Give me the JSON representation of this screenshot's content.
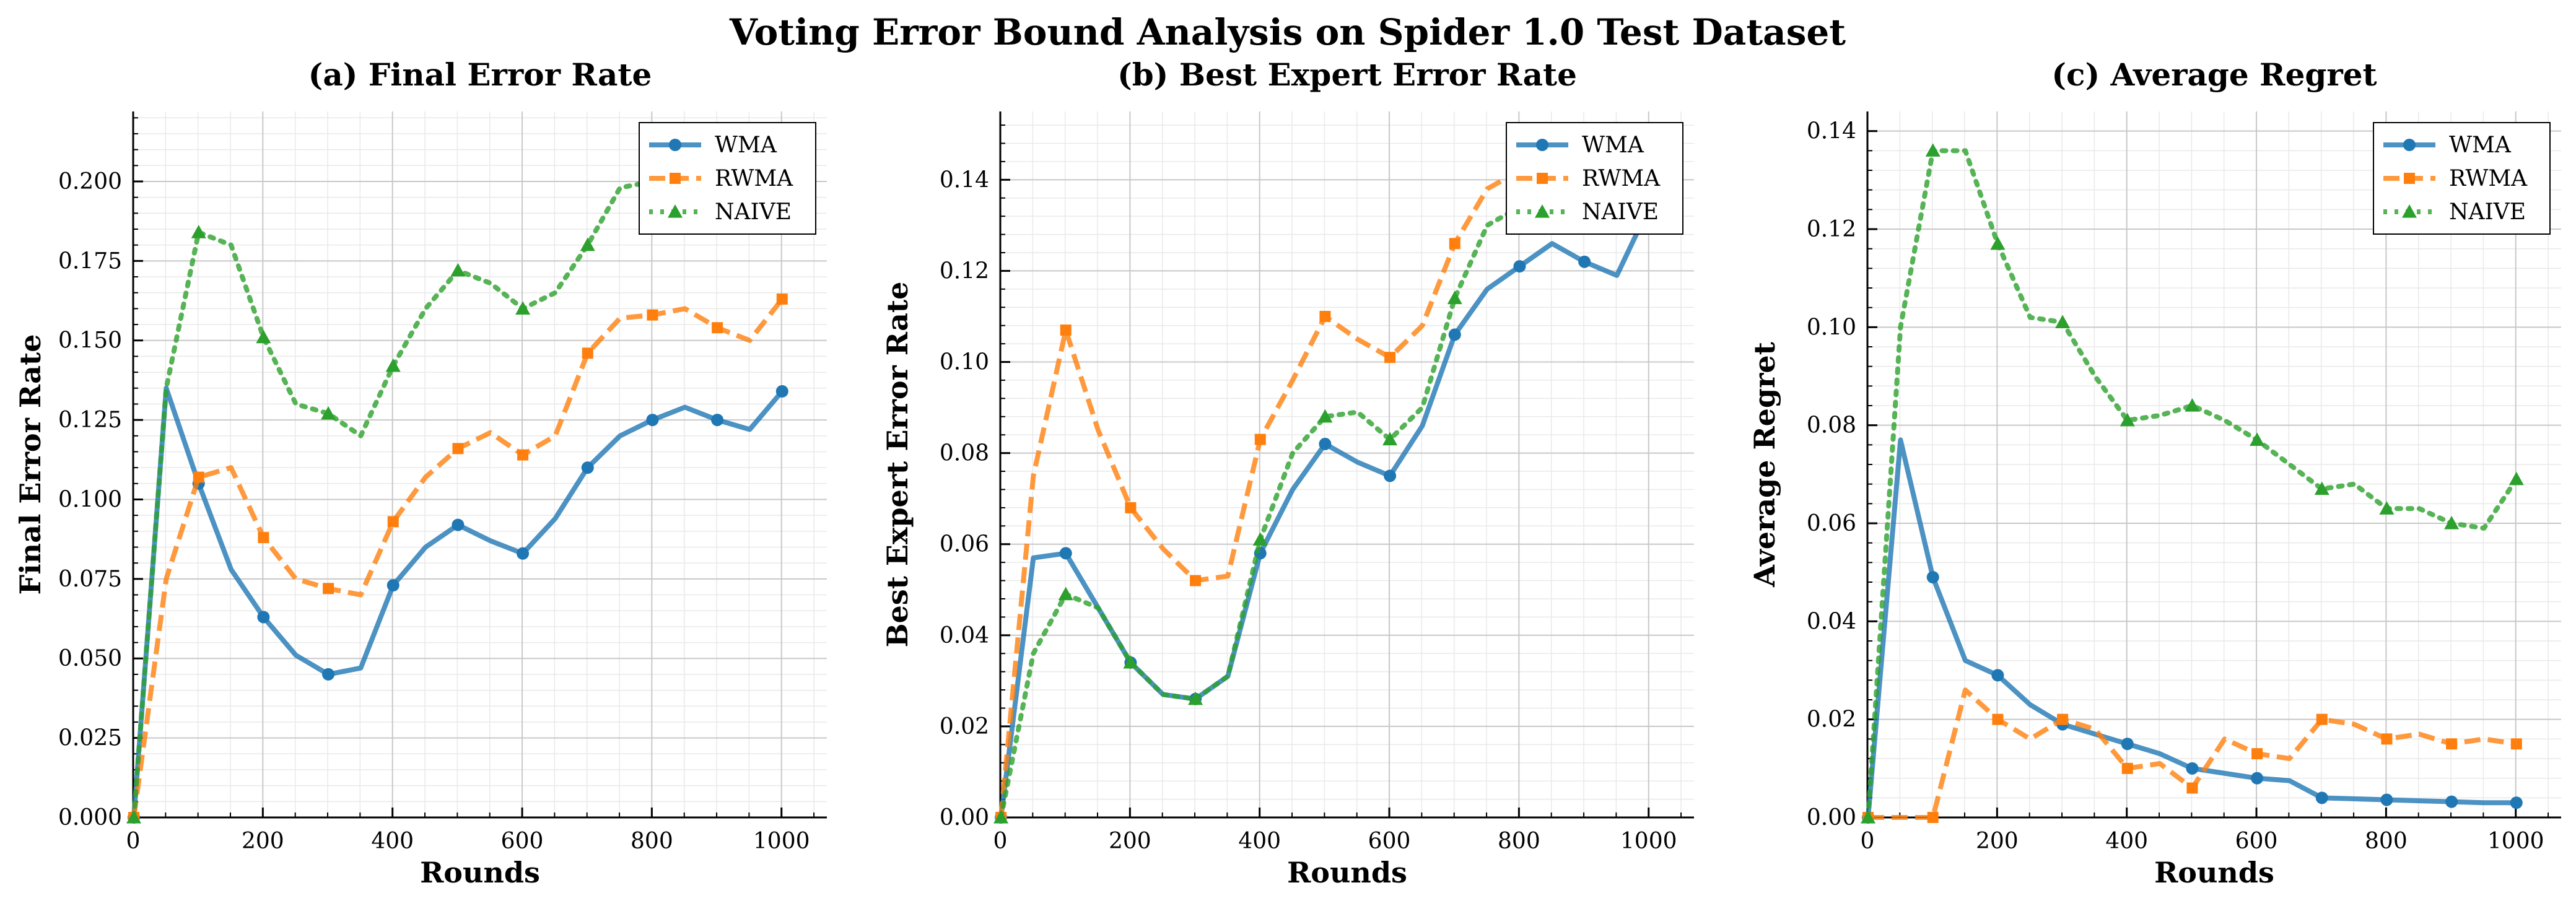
{
  "figure": {
    "title": "Voting Error Bound Analysis on Spider 1.0 Test Dataset"
  },
  "chart_data": [
    {
      "type": "line",
      "title": "(a) Final Error Rate",
      "xlabel": "Rounds",
      "ylabel": "Final Error Rate",
      "xlim": [
        0,
        1070
      ],
      "ylim": [
        0,
        0.222
      ],
      "xticks": [
        0,
        200,
        400,
        600,
        800,
        1000
      ],
      "yticks": [
        0.0,
        0.025,
        0.05,
        0.075,
        0.1,
        0.125,
        0.15,
        0.175,
        0.2
      ],
      "ytick_labels": [
        "0.000",
        "0.025",
        "0.050",
        "0.075",
        "0.100",
        "0.125",
        "0.150",
        "0.175",
        "0.200"
      ],
      "grid": true,
      "legend": "top-right",
      "x": [
        1,
        51,
        101,
        151,
        201,
        251,
        301,
        351,
        401,
        451,
        501,
        551,
        601,
        651,
        701,
        751,
        801,
        851,
        901,
        951,
        1001
      ],
      "series": [
        {
          "name": "WMA",
          "color": "#1f77b4",
          "style": "solid",
          "marker": "circle",
          "values": [
            0.0,
            0.135,
            0.105,
            0.078,
            0.063,
            0.051,
            0.045,
            0.047,
            0.073,
            0.085,
            0.092,
            0.087,
            0.083,
            0.094,
            0.11,
            0.12,
            0.125,
            0.129,
            0.125,
            0.122,
            0.134
          ]
        },
        {
          "name": "RWMA",
          "color": "#ff7f0e",
          "style": "dashed",
          "marker": "square",
          "values": [
            0.0,
            0.075,
            0.107,
            0.11,
            0.088,
            0.075,
            0.072,
            0.07,
            0.093,
            0.107,
            0.116,
            0.121,
            0.114,
            0.12,
            0.146,
            0.157,
            0.158,
            0.16,
            0.154,
            0.15,
            0.163
          ]
        },
        {
          "name": "NAIVE",
          "color": "#2ca02c",
          "style": "dotted",
          "marker": "triangle",
          "values": [
            0.0,
            0.135,
            0.184,
            0.18,
            0.151,
            0.13,
            0.127,
            0.12,
            0.142,
            0.16,
            0.172,
            0.168,
            0.16,
            0.165,
            0.18,
            0.198,
            0.2,
            0.195,
            0.194,
            0.198,
            0.21
          ]
        }
      ]
    },
    {
      "type": "line",
      "title": "(b) Best Expert Error Rate",
      "xlabel": "Rounds",
      "ylabel": "Best Expert Error Rate",
      "xlim": [
        0,
        1070
      ],
      "ylim": [
        0,
        0.155
      ],
      "xticks": [
        0,
        200,
        400,
        600,
        800,
        1000
      ],
      "yticks": [
        0.0,
        0.02,
        0.04,
        0.06,
        0.08,
        0.1,
        0.12,
        0.14
      ],
      "ytick_labels": [
        "0.00",
        "0.02",
        "0.04",
        "0.06",
        "0.08",
        "0.10",
        "0.12",
        "0.14"
      ],
      "grid": true,
      "legend": "top-right",
      "x": [
        1,
        51,
        101,
        151,
        201,
        251,
        301,
        351,
        401,
        451,
        501,
        551,
        601,
        651,
        701,
        751,
        801,
        851,
        901,
        951,
        1001
      ],
      "series": [
        {
          "name": "WMA",
          "color": "#1f77b4",
          "style": "solid",
          "marker": "circle",
          "values": [
            0.0,
            0.057,
            0.058,
            0.046,
            0.034,
            0.027,
            0.026,
            0.031,
            0.058,
            0.072,
            0.082,
            0.078,
            0.075,
            0.086,
            0.106,
            0.116,
            0.121,
            0.126,
            0.122,
            0.119,
            0.134
          ]
        },
        {
          "name": "RWMA",
          "color": "#ff7f0e",
          "style": "dashed",
          "marker": "square",
          "values": [
            0.0,
            0.075,
            0.107,
            0.085,
            0.068,
            0.059,
            0.052,
            0.053,
            0.083,
            0.096,
            0.11,
            0.105,
            0.101,
            0.108,
            0.126,
            0.138,
            0.142,
            0.142,
            0.14,
            0.143,
            0.148
          ]
        },
        {
          "name": "NAIVE",
          "color": "#2ca02c",
          "style": "dotted",
          "marker": "triangle",
          "values": [
            0.0,
            0.036,
            0.049,
            0.046,
            0.034,
            0.027,
            0.026,
            0.031,
            0.061,
            0.08,
            0.088,
            0.089,
            0.083,
            0.09,
            0.114,
            0.13,
            0.134,
            0.135,
            0.137,
            0.14,
            0.148
          ]
        }
      ]
    },
    {
      "type": "line",
      "title": "(c) Average Regret",
      "xlabel": "Rounds",
      "ylabel": "Average Regret",
      "xlim": [
        0,
        1070
      ],
      "ylim": [
        0,
        0.144
      ],
      "xticks": [
        0,
        200,
        400,
        600,
        800,
        1000
      ],
      "yticks": [
        0.0,
        0.02,
        0.04,
        0.06,
        0.08,
        0.1,
        0.12,
        0.14
      ],
      "ytick_labels": [
        "0.00",
        "0.02",
        "0.04",
        "0.06",
        "0.08",
        "0.10",
        "0.12",
        "0.14"
      ],
      "grid": true,
      "legend": "top-right",
      "x": [
        1,
        51,
        101,
        151,
        201,
        251,
        301,
        351,
        401,
        451,
        501,
        551,
        601,
        651,
        701,
        751,
        801,
        851,
        901,
        951,
        1001
      ],
      "series": [
        {
          "name": "WMA",
          "color": "#1f77b4",
          "style": "solid",
          "marker": "circle",
          "values": [
            0.0,
            0.077,
            0.049,
            0.032,
            0.029,
            0.023,
            0.019,
            0.017,
            0.015,
            0.013,
            0.01,
            0.009,
            0.008,
            0.0075,
            0.004,
            0.0038,
            0.0036,
            0.0034,
            0.0032,
            0.003,
            0.003
          ]
        },
        {
          "name": "RWMA",
          "color": "#ff7f0e",
          "style": "dashed",
          "marker": "square",
          "values": [
            0.0,
            0.0,
            0.0,
            0.026,
            0.02,
            0.016,
            0.02,
            0.018,
            0.01,
            0.011,
            0.006,
            0.016,
            0.013,
            0.012,
            0.02,
            0.019,
            0.016,
            0.017,
            0.015,
            0.016,
            0.015
          ]
        },
        {
          "name": "NAIVE",
          "color": "#2ca02c",
          "style": "dotted",
          "marker": "triangle",
          "values": [
            0.0,
            0.1,
            0.136,
            0.136,
            0.117,
            0.102,
            0.101,
            0.09,
            0.081,
            0.082,
            0.084,
            0.081,
            0.077,
            0.072,
            0.067,
            0.068,
            0.063,
            0.063,
            0.06,
            0.059,
            0.069
          ]
        }
      ]
    }
  ]
}
